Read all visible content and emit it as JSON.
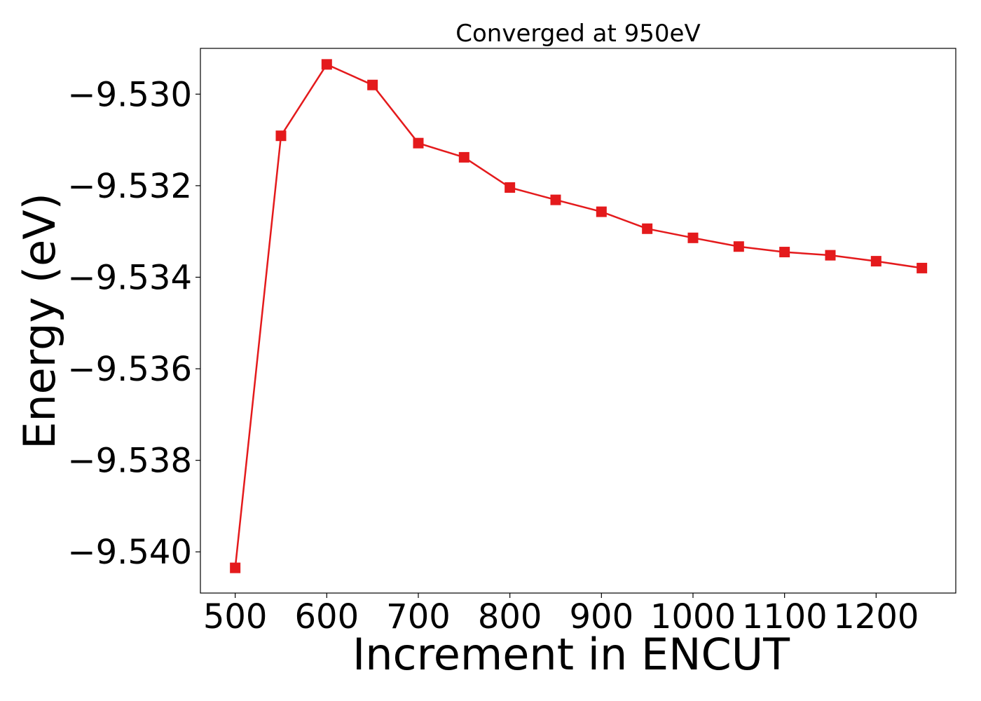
{
  "chart_data": {
    "type": "line",
    "title": "Converged at 950eV",
    "xlabel": "Increment in ENCUT",
    "ylabel": "Energy (eV)",
    "xlim": [
      462,
      1287
    ],
    "ylim": [
      -9.5409,
      -9.529
    ],
    "xticks": [
      500,
      600,
      700,
      800,
      900,
      1000,
      1100,
      1200
    ],
    "xtick_labels": [
      "500",
      "600",
      "700",
      "800",
      "900",
      "1000",
      "1100",
      "1200"
    ],
    "yticks": [
      -9.53,
      -9.532,
      -9.534,
      -9.536,
      -9.538,
      -9.54
    ],
    "ytick_labels": [
      "−9.530",
      "−9.532",
      "−9.534",
      "−9.536",
      "−9.538",
      "−9.540"
    ],
    "grid": false,
    "marker": "square",
    "line_color": "#e41a1c",
    "series": [
      {
        "x": [
          500,
          550,
          600,
          650,
          700,
          750,
          800,
          850,
          900,
          950,
          1000,
          1050,
          1100,
          1150,
          1200,
          1250
        ],
        "y": [
          -9.54035,
          -9.53091,
          -9.52935,
          -9.5298,
          -9.53107,
          -9.53138,
          -9.53204,
          -9.53231,
          -9.53257,
          -9.53294,
          -9.53314,
          -9.53333,
          -9.53345,
          -9.53352,
          -9.53365,
          -9.5338
        ]
      }
    ]
  }
}
